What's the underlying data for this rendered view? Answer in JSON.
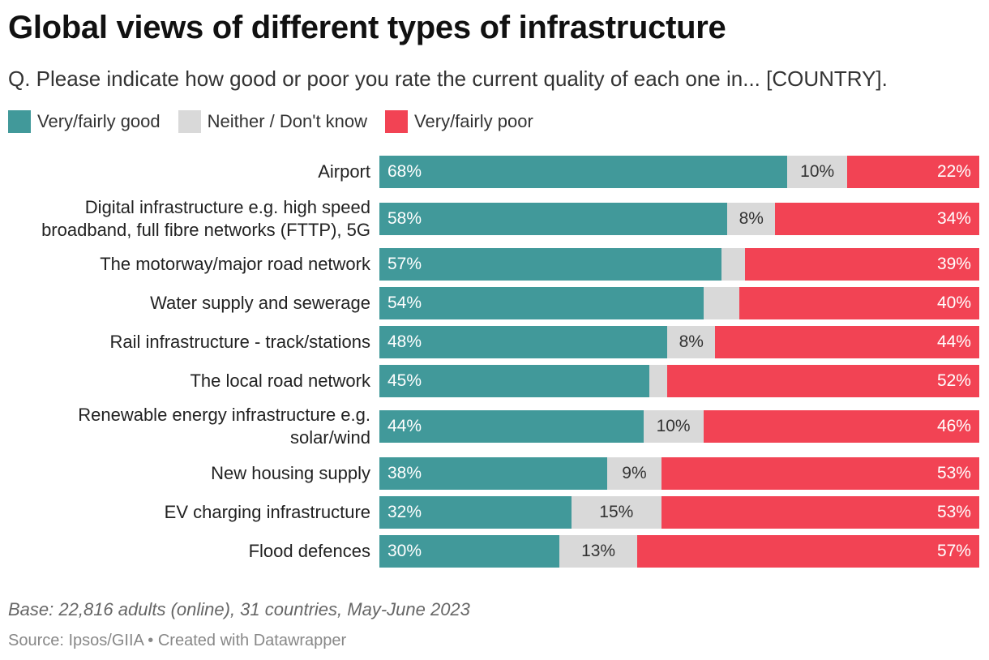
{
  "title": "Global views of different types of infrastructure",
  "subtitle": "Q. Please indicate how good or poor you rate the current quality of each one in... [COUNTRY].",
  "legend": [
    {
      "label": "Very/fairly good",
      "color": "#41999a"
    },
    {
      "label": "Neither / Don't know",
      "color": "#d9d9d9"
    },
    {
      "label": "Very/fairly poor",
      "color": "#f24354"
    }
  ],
  "chart_data": {
    "type": "bar",
    "orientation": "horizontal",
    "stacked": true,
    "xlim": [
      0,
      100
    ],
    "categories": [
      "Airport",
      "Digital infrastructure e.g. high speed broadband, full fibre networks (FTTP), 5G",
      "The motorway/major road network",
      "Water supply and sewerage",
      "Rail infrastructure - track/stations",
      "The local road network",
      "Renewable energy infrastructure e.g. solar/wind",
      "New housing supply",
      "EV charging infrastructure",
      "Flood defences"
    ],
    "category_lines": [
      [
        "Airport"
      ],
      [
        "Digital infrastructure e.g. high speed",
        "broadband, full fibre networks (FTTP), 5G"
      ],
      [
        "The motorway/major road network"
      ],
      [
        "Water supply and sewerage"
      ],
      [
        "Rail infrastructure - track/stations"
      ],
      [
        "The local road network"
      ],
      [
        "Renewable energy infrastructure e.g.",
        "solar/wind"
      ],
      [
        "New housing supply"
      ],
      [
        "EV charging infrastructure"
      ],
      [
        "Flood defences"
      ]
    ],
    "series": [
      {
        "name": "Very/fairly good",
        "color": "#41999a",
        "values": [
          68,
          58,
          57,
          54,
          48,
          45,
          44,
          38,
          32,
          30
        ],
        "labels": [
          "68%",
          "58%",
          "57%",
          "54%",
          "48%",
          "45%",
          "44%",
          "38%",
          "32%",
          "30%"
        ]
      },
      {
        "name": "Neither / Don't know",
        "color": "#d9d9d9",
        "values": [
          10,
          8,
          4,
          6,
          8,
          3,
          10,
          9,
          15,
          13
        ],
        "labels": [
          "10%",
          "8%",
          "",
          "",
          "8%",
          "",
          "10%",
          "9%",
          "15%",
          "13%"
        ]
      },
      {
        "name": "Very/fairly poor",
        "color": "#f24354",
        "values": [
          22,
          34,
          39,
          40,
          44,
          52,
          46,
          53,
          53,
          57
        ],
        "labels": [
          "22%",
          "34%",
          "39%",
          "40%",
          "44%",
          "52%",
          "46%",
          "53%",
          "53%",
          "57%"
        ]
      }
    ]
  },
  "footer": {
    "base": "Base: 22,816 adults (online), 31 countries, May-June 2023",
    "source": "Source: Ipsos/GIIA • Created with Datawrapper"
  }
}
